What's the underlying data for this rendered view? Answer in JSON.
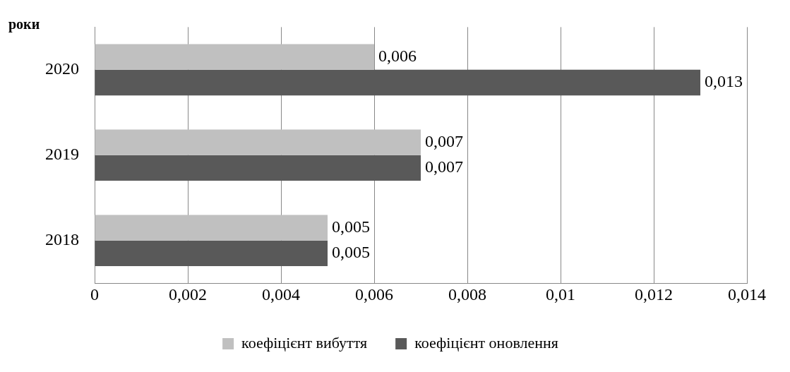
{
  "chart_data": {
    "type": "bar",
    "orientation": "horizontal",
    "ylabel": "роки",
    "categories": [
      "2020",
      "2019",
      "2018"
    ],
    "series": [
      {
        "name": "коефіцієнт вибуття",
        "color": "#c0c0c0",
        "values": [
          0.006,
          0.007,
          0.005
        ],
        "value_labels": [
          "0,006",
          "0,007",
          "0,005"
        ]
      },
      {
        "name": "коефіцієнт оновлення",
        "color": "#595959",
        "values": [
          0.013,
          0.007,
          0.005
        ],
        "value_labels": [
          "0,013",
          "0,007",
          "0,005"
        ]
      }
    ],
    "xlim": [
      0,
      0.014
    ],
    "xticks": [
      0,
      {
        "value": 0.002,
        "label": "0,002"
      },
      {
        "value": 0.004,
        "label": "0,004"
      },
      {
        "value": 0.006,
        "label": "0,006"
      },
      {
        "value": 0.008,
        "label": "0,008"
      },
      {
        "value": 0.01,
        "label": "0,01"
      },
      {
        "value": 0.012,
        "label": "0,012"
      },
      {
        "value": 0.014,
        "label": "0,014"
      }
    ],
    "grid": "x",
    "legend": "bottom"
  }
}
